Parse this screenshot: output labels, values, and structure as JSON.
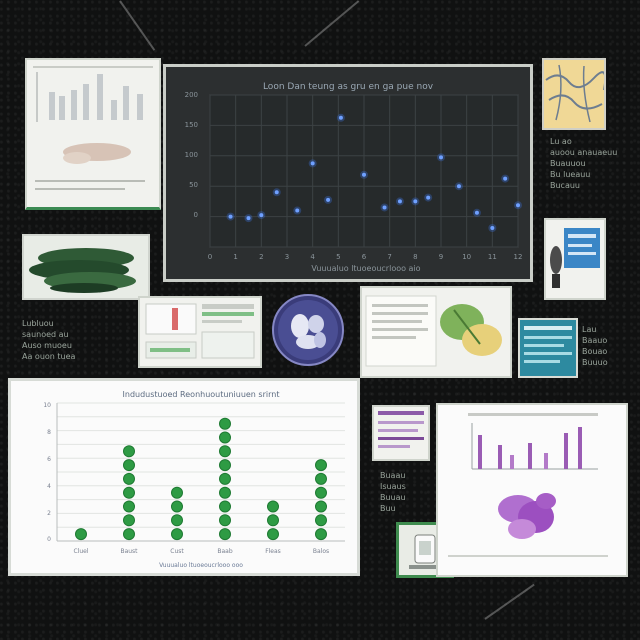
{
  "scatter_chart": {
    "title": "Loon Dan teung as gru en ga pue nov",
    "x_ticks": [
      "0",
      "1",
      "2",
      "3",
      "4",
      "5",
      "6",
      "7",
      "8",
      "9",
      "10",
      "11",
      "12"
    ],
    "y_ticks": [
      "200",
      "150",
      "100",
      "50",
      "0"
    ],
    "xlabel": "Vuuualuo ltuoeoucrlooo aio"
  },
  "bar_chart": {
    "title": "Indudustuoed Reonhuoutuniuuen srirnt",
    "xlabel": "Vuuualuo ltuoeoucrlooo ooo",
    "y_ticks": [
      "10",
      "8",
      "6",
      "4",
      "2",
      "0"
    ],
    "categories": [
      "Cluel",
      "Baust",
      "Cust",
      "Baab",
      "Fleas",
      "Balos"
    ]
  },
  "captions": {
    "left_caption": "Lubluou\nsaunoed au\nAuso muoeu\nAa ouon tuea",
    "right_top_caption": "Lu ao\nauoou anauaeuu\nBuauuou\nBu lueauu\nBucauu",
    "right_mid_caption": "Lau\nBaauo\nBouao\nBuuuo",
    "center_caption": "Buaau\nIsuaus\nBuuau\nBuu"
  },
  "chart_data": [
    {
      "type": "scatter",
      "title": "Loon Dan teung as gru en ga pue nov",
      "xlabel": "Vuuualuo ltuoeoucrlooo aio",
      "ylabel": "",
      "xlim": [
        0,
        12
      ],
      "ylim": [
        0,
        200
      ],
      "points": [
        [
          0.8,
          40
        ],
        [
          1.5,
          38
        ],
        [
          2.0,
          42
        ],
        [
          2.6,
          72
        ],
        [
          3.4,
          48
        ],
        [
          4.0,
          110
        ],
        [
          4.6,
          62
        ],
        [
          5.1,
          170
        ],
        [
          6.0,
          95
        ],
        [
          6.8,
          52
        ],
        [
          7.4,
          60
        ],
        [
          8.0,
          60
        ],
        [
          8.5,
          65
        ],
        [
          9.0,
          118
        ],
        [
          9.7,
          80
        ],
        [
          10.4,
          45
        ],
        [
          11.0,
          25
        ],
        [
          11.5,
          90
        ],
        [
          12.0,
          55
        ]
      ]
    },
    {
      "type": "bar",
      "title": "Indudustuoed Reonhuoutuniuuen srirnt",
      "xlabel": "Vuuualuo ltuoeoucrlooo ooo",
      "categories": [
        "Cluel",
        "Baust",
        "Cust",
        "Baab",
        "Fleas",
        "Balos"
      ],
      "values": [
        1,
        7,
        4,
        9,
        3,
        6
      ],
      "ylim": [
        0,
        10
      ]
    }
  ]
}
